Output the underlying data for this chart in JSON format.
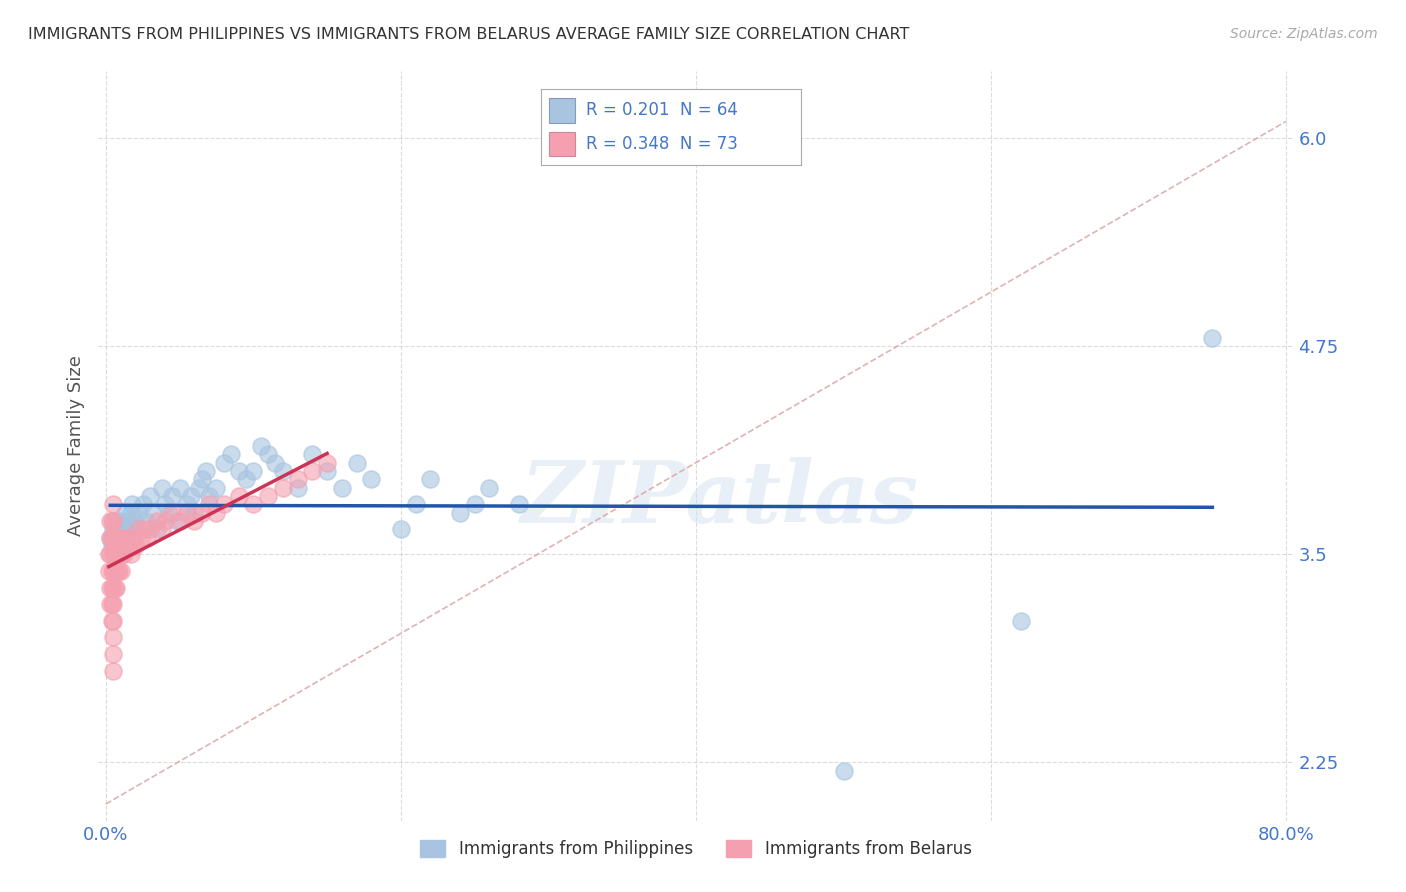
{
  "title": "IMMIGRANTS FROM PHILIPPINES VS IMMIGRANTS FROM BELARUS AVERAGE FAMILY SIZE CORRELATION CHART",
  "source": "Source: ZipAtlas.com",
  "ylabel": "Average Family Size",
  "watermark": "ZIPatlas",
  "xlim": [
    -0.005,
    0.805
  ],
  "ylim": [
    1.9,
    6.4
  ],
  "yticks": [
    2.25,
    3.5,
    4.75,
    6.0
  ],
  "xticks": [
    0.0,
    0.2,
    0.4,
    0.6,
    0.8
  ],
  "xtick_labels": [
    "0.0%",
    "",
    "",
    "",
    "80.0%"
  ],
  "legend1_r": "R = 0.201",
  "legend1_n": "N = 64",
  "legend2_r": "R = 0.348",
  "legend2_n": "N = 73",
  "blue_scatter_color": "#A8C4E0",
  "pink_scatter_color": "#F4A0B0",
  "blue_line_color": "#2255AA",
  "pink_line_color": "#CC3355",
  "diag_line_color": "#DDAAAA",
  "grid_color": "#CCCCCC",
  "title_color": "#333333",
  "axis_label_color": "#555555",
  "tick_color": "#4477CC",
  "background_color": "#FFFFFF",
  "philippines_x": [
    0.003,
    0.004,
    0.005,
    0.006,
    0.007,
    0.008,
    0.009,
    0.01,
    0.01,
    0.011,
    0.012,
    0.013,
    0.014,
    0.015,
    0.016,
    0.017,
    0.018,
    0.019,
    0.02,
    0.022,
    0.025,
    0.027,
    0.03,
    0.032,
    0.035,
    0.038,
    0.04,
    0.043,
    0.045,
    0.048,
    0.05,
    0.055,
    0.058,
    0.06,
    0.063,
    0.065,
    0.068,
    0.07,
    0.075,
    0.08,
    0.085,
    0.09,
    0.095,
    0.1,
    0.105,
    0.11,
    0.115,
    0.12,
    0.13,
    0.14,
    0.15,
    0.16,
    0.17,
    0.18,
    0.2,
    0.21,
    0.22,
    0.24,
    0.25,
    0.26,
    0.28,
    0.5,
    0.62,
    0.75
  ],
  "philippines_y": [
    3.6,
    3.55,
    3.65,
    3.5,
    3.7,
    3.6,
    3.55,
    3.65,
    3.7,
    3.6,
    3.55,
    3.75,
    3.65,
    3.7,
    3.6,
    3.75,
    3.8,
    3.65,
    3.7,
    3.75,
    3.8,
    3.7,
    3.85,
    3.75,
    3.65,
    3.9,
    3.8,
    3.75,
    3.85,
    3.7,
    3.9,
    3.8,
    3.85,
    3.75,
    3.9,
    3.95,
    4.0,
    3.85,
    3.9,
    4.05,
    4.1,
    4.0,
    3.95,
    4.0,
    4.15,
    4.1,
    4.05,
    4.0,
    3.9,
    4.1,
    4.0,
    3.9,
    4.05,
    3.95,
    3.65,
    3.8,
    3.95,
    3.75,
    3.8,
    3.9,
    3.8,
    2.2,
    3.1,
    4.8
  ],
  "belarus_x": [
    0.002,
    0.002,
    0.003,
    0.003,
    0.003,
    0.003,
    0.003,
    0.004,
    0.004,
    0.004,
    0.004,
    0.004,
    0.004,
    0.005,
    0.005,
    0.005,
    0.005,
    0.005,
    0.005,
    0.005,
    0.005,
    0.005,
    0.005,
    0.005,
    0.006,
    0.006,
    0.006,
    0.006,
    0.007,
    0.007,
    0.007,
    0.007,
    0.008,
    0.008,
    0.008,
    0.009,
    0.009,
    0.01,
    0.01,
    0.01,
    0.011,
    0.012,
    0.013,
    0.014,
    0.015,
    0.016,
    0.017,
    0.018,
    0.019,
    0.02,
    0.022,
    0.024,
    0.026,
    0.028,
    0.03,
    0.035,
    0.038,
    0.04,
    0.045,
    0.05,
    0.055,
    0.06,
    0.065,
    0.07,
    0.075,
    0.08,
    0.09,
    0.1,
    0.11,
    0.12,
    0.13,
    0.14,
    0.15
  ],
  "belarus_y": [
    3.5,
    3.4,
    3.6,
    3.3,
    3.7,
    3.2,
    3.5,
    3.4,
    3.6,
    3.3,
    3.7,
    3.2,
    3.1,
    3.5,
    3.4,
    3.6,
    3.3,
    3.7,
    3.2,
    3.1,
    3.0,
    2.9,
    2.8,
    3.8,
    3.5,
    3.4,
    3.6,
    3.3,
    3.5,
    3.4,
    3.6,
    3.3,
    3.5,
    3.4,
    3.6,
    3.5,
    3.4,
    3.5,
    3.4,
    3.6,
    3.5,
    3.5,
    3.6,
    3.55,
    3.6,
    3.55,
    3.5,
    3.55,
    3.6,
    3.55,
    3.65,
    3.6,
    3.65,
    3.6,
    3.65,
    3.7,
    3.65,
    3.7,
    3.75,
    3.7,
    3.75,
    3.7,
    3.75,
    3.8,
    3.75,
    3.8,
    3.85,
    3.8,
    3.85,
    3.9,
    3.95,
    4.0,
    4.05
  ]
}
